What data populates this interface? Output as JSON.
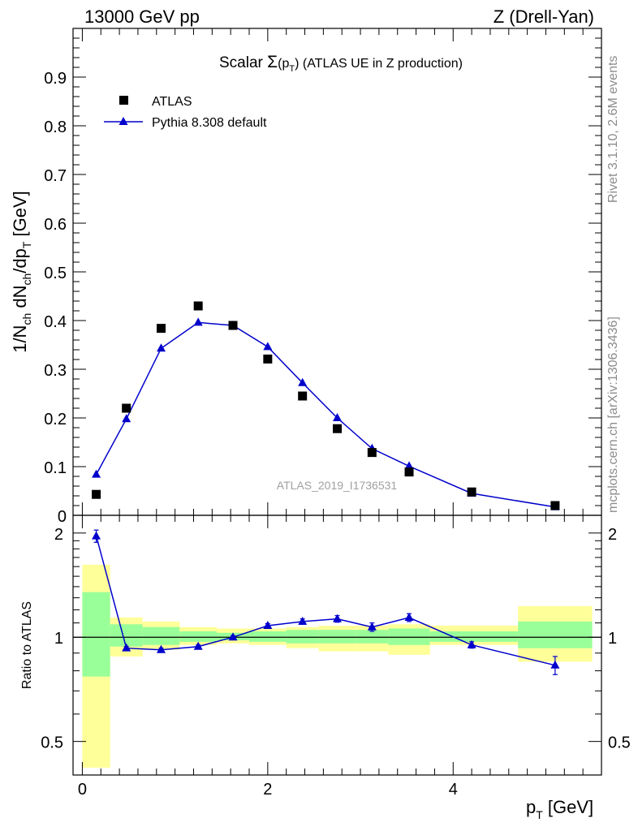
{
  "header": {
    "left": "13000 GeV pp",
    "right": "Z (Drell-Yan)"
  },
  "side_labels": {
    "rivet": "Rivet 3.1.10,  2.6M events",
    "mcplots": "mcplots.cern.ch [arXiv:1306.3436]"
  },
  "colors": {
    "data": "#000000",
    "mc": "#0000cc",
    "band_inner": "#99ff99",
    "band_outer": "#ffff99"
  },
  "chart_data": [
    {
      "type": "scatter",
      "panel": "main",
      "title_prefix": "Scalar ",
      "title_sigma": "Σ",
      "title_arg_open": "(p",
      "title_arg_sub": "T",
      "title_arg_close": ")",
      "title_rest": " (ATLAS UE in Z production)",
      "ylabel": "1/N_ch dN_ch/dp_T [GeV]",
      "ylim": [
        0,
        1.0
      ],
      "yticks": [
        "0",
        "0.1",
        "0.2",
        "0.3",
        "0.4",
        "0.5",
        "0.6",
        "0.7",
        "0.8",
        "0.9"
      ],
      "analysis_id": "ATLAS_2019_I1736531",
      "legend": {
        "placement": "top-left",
        "items": [
          "ATLAS",
          "Pythia 8.308 default"
        ]
      },
      "series": [
        {
          "name": "ATLAS",
          "style": "square-markers",
          "x": [
            0.15,
            0.475,
            0.85,
            1.25,
            1.625,
            2.0,
            2.375,
            2.75,
            3.125,
            3.525,
            4.2,
            5.1
          ],
          "y": [
            0.043,
            0.22,
            0.384,
            0.43,
            0.39,
            0.321,
            0.245,
            0.178,
            0.129,
            0.089,
            0.048,
            0.02
          ]
        },
        {
          "name": "Pythia 8.308 default",
          "style": "line-triangles",
          "x": [
            0.15,
            0.475,
            0.85,
            1.25,
            1.625,
            2.0,
            2.375,
            2.75,
            3.125,
            3.525,
            4.2,
            5.1
          ],
          "y": [
            0.084,
            0.198,
            0.343,
            0.396,
            0.39,
            0.346,
            0.272,
            0.2,
            0.137,
            0.101,
            0.045,
            0.017
          ],
          "yerr": [
            0.002,
            0.003,
            0.005,
            0.006,
            0.006,
            0.005,
            0.004,
            0.003,
            0.002,
            0.002,
            0.001,
            0.001
          ]
        }
      ]
    },
    {
      "type": "line",
      "panel": "ratio",
      "ylabel": "Ratio to ATLAS",
      "ylim": [
        0.4,
        2.25
      ],
      "yscale": "log",
      "yticks": [
        {
          "v": 0.5,
          "label": "0.5"
        },
        {
          "v": 1.0,
          "label": "1"
        },
        {
          "v": 2.0,
          "label": "2"
        }
      ],
      "xlabel_main": "p",
      "xlabel_sub": "T",
      "xlabel_unit": " [GeV]",
      "xlim": [
        -0.1,
        5.6
      ],
      "xticks": [
        {
          "v": 0,
          "label": "0"
        },
        {
          "v": 2,
          "label": "2"
        },
        {
          "v": 4,
          "label": "4"
        }
      ],
      "bands": [
        {
          "x0": 0.0,
          "x1": 0.3,
          "inner": [
            0.77,
            1.35
          ],
          "outer": [
            0.42,
            1.62
          ]
        },
        {
          "x0": 0.3,
          "x1": 0.65,
          "inner": [
            0.94,
            1.09
          ],
          "outer": [
            0.88,
            1.14
          ]
        },
        {
          "x0": 0.65,
          "x1": 1.05,
          "inner": [
            0.95,
            1.07
          ],
          "outer": [
            0.92,
            1.11
          ]
        },
        {
          "x0": 1.05,
          "x1": 1.45,
          "inner": [
            0.97,
            1.04
          ],
          "outer": [
            0.95,
            1.07
          ]
        },
        {
          "x0": 1.45,
          "x1": 1.8,
          "inner": [
            0.98,
            1.03
          ],
          "outer": [
            0.96,
            1.06
          ]
        },
        {
          "x0": 1.8,
          "x1": 2.2,
          "inner": [
            0.97,
            1.04
          ],
          "outer": [
            0.95,
            1.06
          ]
        },
        {
          "x0": 2.2,
          "x1": 2.55,
          "inner": [
            0.96,
            1.05
          ],
          "outer": [
            0.93,
            1.07
          ]
        },
        {
          "x0": 2.55,
          "x1": 2.95,
          "inner": [
            0.96,
            1.05
          ],
          "outer": [
            0.91,
            1.08
          ]
        },
        {
          "x0": 2.95,
          "x1": 3.3,
          "inner": [
            0.96,
            1.05
          ],
          "outer": [
            0.91,
            1.08
          ]
        },
        {
          "x0": 3.3,
          "x1": 3.75,
          "inner": [
            0.95,
            1.06
          ],
          "outer": [
            0.89,
            1.09
          ]
        },
        {
          "x0": 3.75,
          "x1": 4.7,
          "inner": [
            0.97,
            1.04
          ],
          "outer": [
            0.95,
            1.08
          ]
        },
        {
          "x0": 4.7,
          "x1": 5.5,
          "inner": [
            0.93,
            1.11
          ],
          "outer": [
            0.85,
            1.23
          ]
        }
      ],
      "series": [
        {
          "name": "Pythia 8.308 default",
          "x": [
            0.15,
            0.475,
            0.85,
            1.25,
            1.625,
            2.0,
            2.375,
            2.75,
            3.125,
            3.525,
            4.2,
            5.1
          ],
          "y": [
            1.96,
            0.93,
            0.92,
            0.94,
            1.0,
            1.08,
            1.11,
            1.13,
            1.07,
            1.14,
            0.95,
            0.83
          ],
          "yerr": [
            0.08,
            0.01,
            0.01,
            0.01,
            0.01,
            0.015,
            0.02,
            0.025,
            0.03,
            0.03,
            0.02,
            0.05
          ]
        }
      ]
    }
  ]
}
